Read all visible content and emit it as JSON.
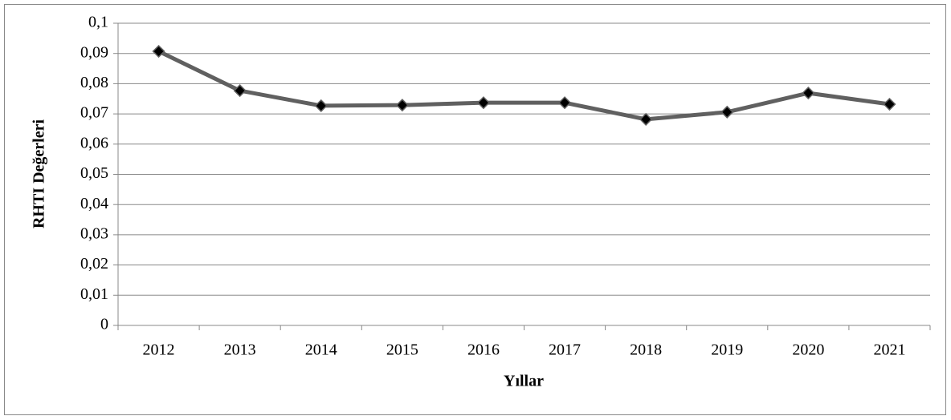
{
  "chart_data": {
    "type": "line",
    "xlabel": "Yıllar",
    "ylabel": "RHTI Değerleri",
    "categories": [
      "2012",
      "2013",
      "2014",
      "2015",
      "2016",
      "2017",
      "2018",
      "2019",
      "2020",
      "2021"
    ],
    "series": [
      {
        "name": "RHTI",
        "color": "#606060",
        "marker_color": "#000000",
        "values": [
          0.0907,
          0.0777,
          0.0727,
          0.0729,
          0.0737,
          0.0737,
          0.0682,
          0.0706,
          0.0769,
          0.0732
        ]
      }
    ],
    "ylim": [
      0,
      0.1
    ],
    "yticks": [
      0,
      {
        "value": 0.01,
        "label": "0,01"
      },
      {
        "value": 0.02,
        "label": "0,02"
      },
      {
        "value": 0.03,
        "label": "0,03"
      },
      {
        "value": 0.04,
        "label": "0,04"
      },
      {
        "value": 0.05,
        "label": "0,05"
      },
      {
        "value": 0.06,
        "label": "0,06"
      },
      {
        "value": 0.07,
        "label": "0,07"
      },
      {
        "value": 0.08,
        "label": "0,08"
      },
      {
        "value": 0.09,
        "label": "0,09"
      },
      {
        "value": 0.1,
        "label": "0,1"
      }
    ],
    "grid": true,
    "legend": false
  }
}
